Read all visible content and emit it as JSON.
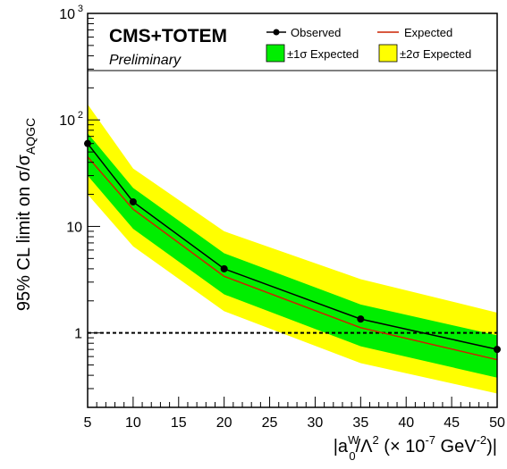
{
  "chart_data": {
    "type": "line",
    "title": "CMS+TOTEM",
    "subtitle": "Preliminary",
    "ylabel_main": "95% CL limit on σ/σ",
    "ylabel_sub": "AQGC",
    "xlabel_pre": "|a",
    "xlabel_sub": "0",
    "xlabel_sup": "W",
    "xlabel_mid": "/Λ",
    "xlabel_sup2": "2",
    "xlabel_post": " (× 10",
    "xlabel_sup3": "-7",
    "xlabel_post2": " GeV",
    "xlabel_sup4": "-2",
    "xlabel_end": ")|",
    "xlim": [
      5,
      50
    ],
    "ylim": [
      0.2,
      1000
    ],
    "yscale": "log",
    "x_ticks": [
      "5",
      "10",
      "15",
      "20",
      "25",
      "30",
      "35",
      "40",
      "45",
      "50"
    ],
    "y_tick_labels": [
      {
        "value": 1,
        "label": "1"
      },
      {
        "value": 10,
        "label": "10"
      },
      {
        "value": 100,
        "label": "10",
        "exp": "2"
      },
      {
        "value": 1000,
        "label": "10",
        "exp": "3"
      }
    ],
    "x": [
      5,
      10,
      20,
      35,
      50
    ],
    "series": [
      {
        "name": "Observed",
        "values": [
          60,
          17,
          4,
          1.35,
          0.7
        ],
        "color": "#000000",
        "style": "line+markers"
      },
      {
        "name": "Expected",
        "values": [
          45,
          14.5,
          3.4,
          1.12,
          0.56
        ],
        "color": "#cc2200",
        "style": "line"
      }
    ],
    "bands": [
      {
        "name": "±2σ Expected",
        "color": "#ffff00",
        "lower": [
          20,
          6.5,
          1.6,
          0.52,
          0.27
        ],
        "upper": [
          140,
          35,
          9,
          3.2,
          1.55
        ]
      },
      {
        "name": "±1σ Expected",
        "color": "#00ee00",
        "lower": [
          30,
          9.5,
          2.3,
          0.75,
          0.38
        ],
        "upper": [
          75,
          23,
          5.6,
          1.85,
          0.95
        ]
      }
    ],
    "reference_line": {
      "value": 1,
      "style": "dashed"
    },
    "legend_placement": "top",
    "grid": false
  }
}
